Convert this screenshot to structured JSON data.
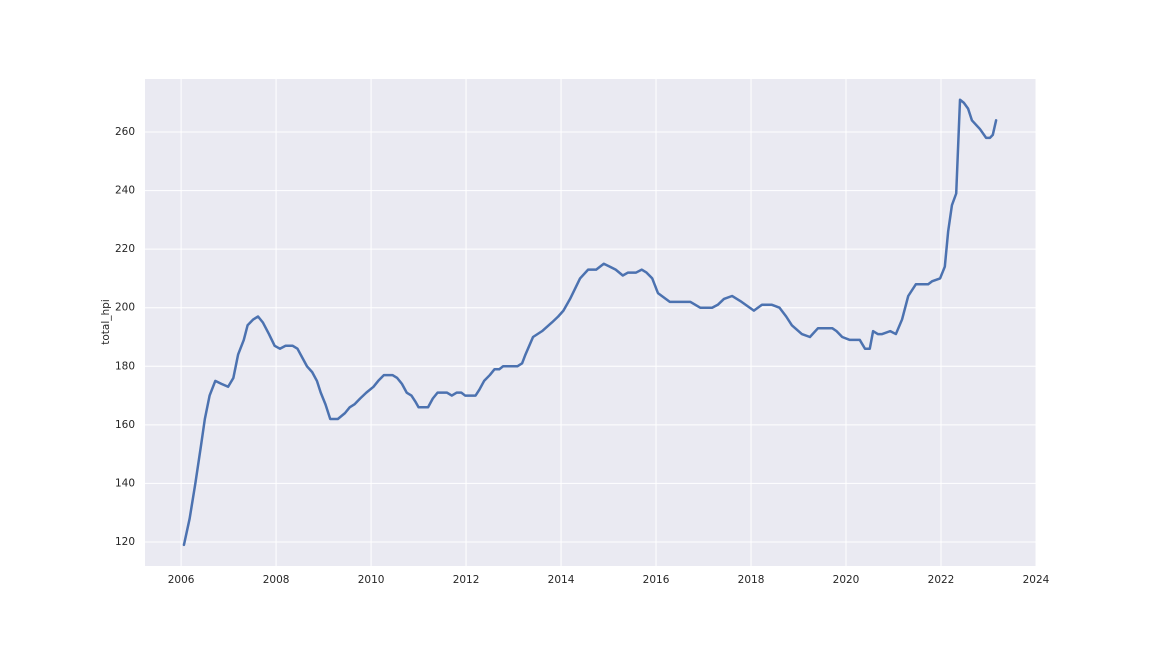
{
  "chart_data": {
    "type": "line",
    "ylabel": "total_hpi",
    "color": "#4c72b0",
    "grid": true,
    "x": [
      2006.06,
      2006.18,
      2006.3,
      2006.42,
      2006.5,
      2006.6,
      2006.72,
      2006.85,
      2006.99,
      2007.1,
      2007.2,
      2007.32,
      2007.4,
      2007.52,
      2007.62,
      2007.72,
      2007.85,
      2007.97,
      2008.08,
      2008.2,
      2008.35,
      2008.45,
      2008.55,
      2008.65,
      2008.76,
      2008.86,
      2008.94,
      2009.04,
      2009.14,
      2009.3,
      2009.45,
      2009.55,
      2009.65,
      2009.77,
      2009.9,
      2010.05,
      2010.15,
      2010.27,
      2010.45,
      2010.55,
      2010.65,
      2010.75,
      2010.85,
      2010.93,
      2011.0,
      2011.2,
      2011.3,
      2011.4,
      2011.6,
      2011.7,
      2011.8,
      2011.9,
      2011.98,
      2012.2,
      2012.28,
      2012.38,
      2012.5,
      2012.6,
      2012.7,
      2012.78,
      2013.08,
      2013.18,
      2013.25,
      2013.41,
      2013.6,
      2013.81,
      2013.94,
      2014.05,
      2014.19,
      2014.4,
      2014.57,
      2014.74,
      2014.9,
      2015.03,
      2015.15,
      2015.3,
      2015.41,
      2015.58,
      2015.7,
      2015.8,
      2015.92,
      2016.04,
      2016.29,
      2016.72,
      2016.93,
      2017.18,
      2017.3,
      2017.43,
      2017.6,
      2017.8,
      2018.06,
      2018.23,
      2018.44,
      2018.6,
      2018.74,
      2018.86,
      2019.07,
      2019.24,
      2019.41,
      2019.71,
      2019.8,
      2019.92,
      2020.08,
      2020.29,
      2020.4,
      2020.5,
      2020.57,
      2020.67,
      2020.76,
      2020.93,
      2021.05,
      2021.18,
      2021.31,
      2021.47,
      2021.73,
      2021.81,
      2021.98,
      2022.08,
      2022.15,
      2022.23,
      2022.32,
      2022.4,
      2022.48,
      2022.57,
      2022.65,
      2022.82,
      2022.95,
      2023.03,
      2023.09,
      2023.16
    ],
    "values": [
      119,
      128,
      140,
      153,
      162,
      170,
      175,
      174,
      173,
      176,
      184,
      189,
      194,
      196,
      197,
      195,
      191,
      187,
      186,
      187,
      187,
      186,
      183,
      180,
      178,
      175,
      171,
      167,
      162,
      162,
      164,
      166,
      167,
      169,
      171,
      173,
      175,
      177,
      177,
      176,
      174,
      171,
      170,
      168,
      166,
      166,
      169,
      171,
      171,
      170,
      171,
      171,
      170,
      170,
      172,
      175,
      177,
      179,
      179,
      180,
      180,
      181,
      184,
      190,
      192,
      195,
      197,
      199,
      203,
      210,
      213,
      213,
      215,
      214,
      213,
      211,
      212,
      212,
      213,
      212,
      210,
      205,
      202,
      202,
      200,
      200,
      201,
      203,
      204,
      202,
      199,
      201,
      201,
      200,
      197,
      194,
      191,
      190,
      193,
      193,
      192,
      190,
      189,
      189,
      186,
      186,
      192,
      191,
      191,
      192,
      191,
      196,
      204,
      208,
      208,
      209,
      210,
      214,
      226,
      235,
      239,
      271,
      270,
      268,
      264,
      261,
      258,
      258,
      259,
      264
    ],
    "xlim": [
      2005.24,
      2024
    ],
    "ylim": [
      111.8,
      278.1
    ],
    "xticks": [
      2006,
      2008,
      2010,
      2012,
      2014,
      2016,
      2018,
      2020,
      2022,
      2024
    ],
    "yticks": [
      120,
      140,
      160,
      180,
      200,
      220,
      240,
      260
    ]
  }
}
